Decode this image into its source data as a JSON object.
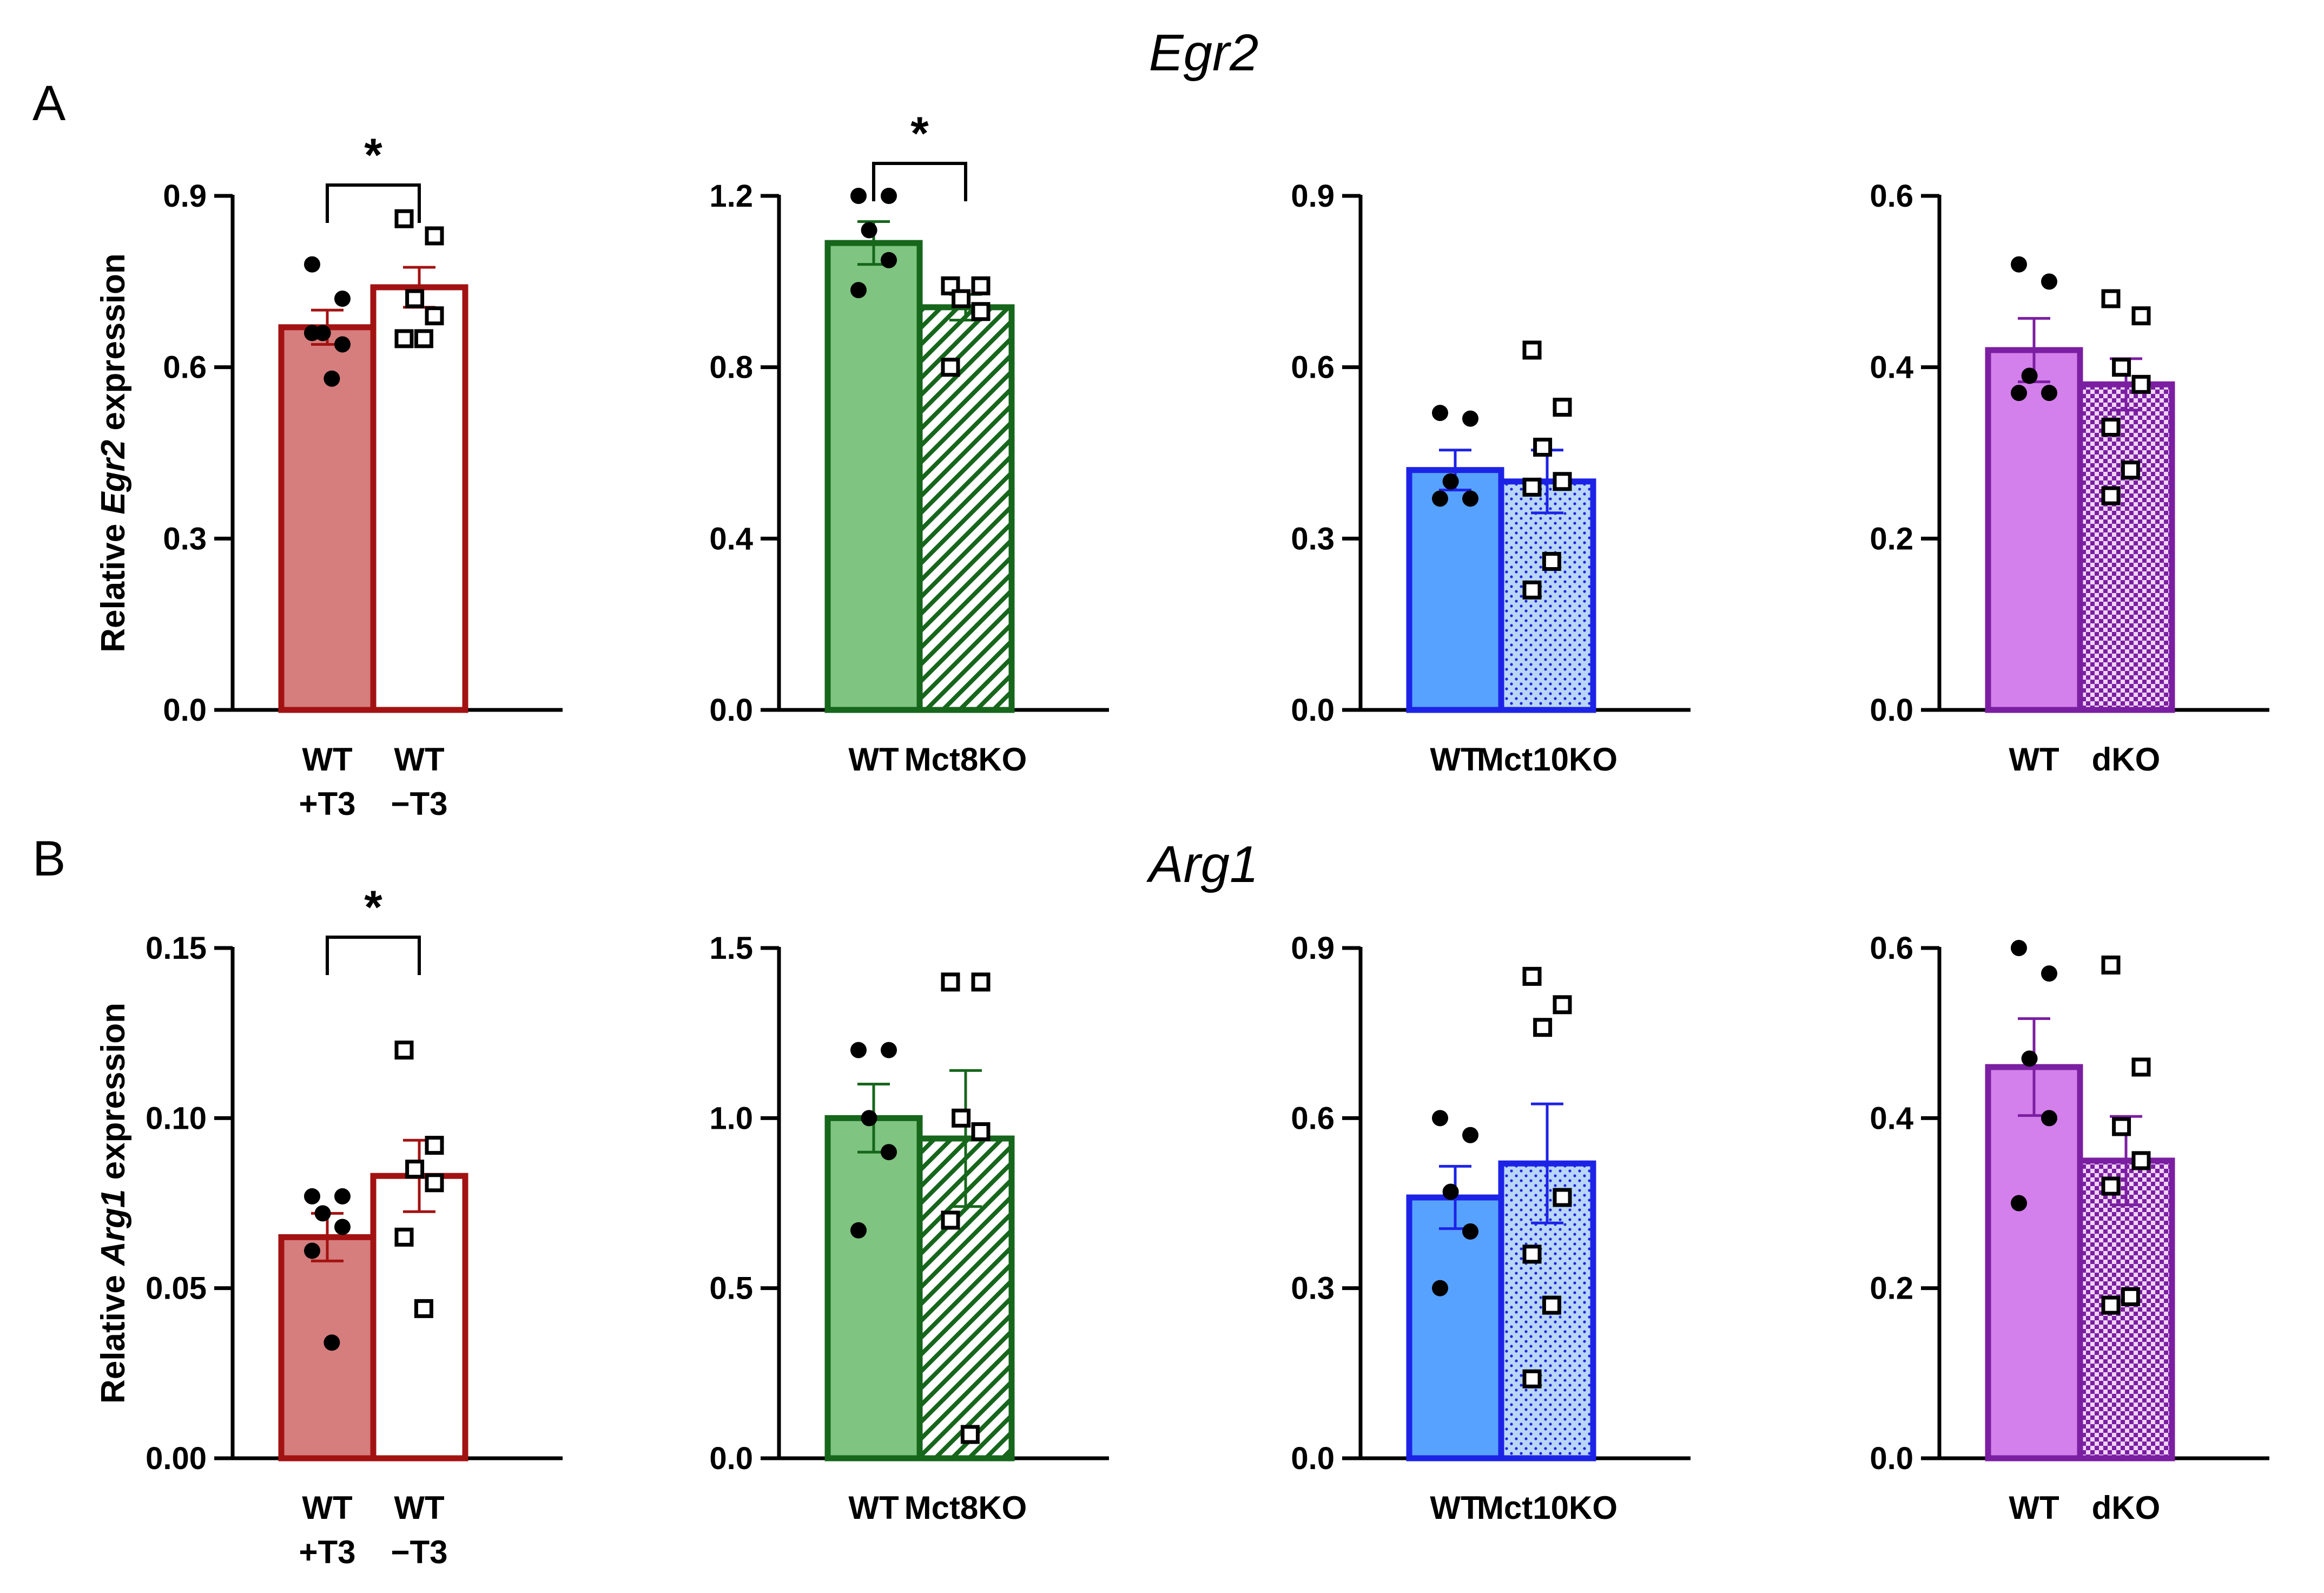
{
  "figure": {
    "panel_labels": [
      "A",
      "B"
    ],
    "genes": [
      "Egr2",
      "Arg1"
    ],
    "significance_mark": "*"
  },
  "colors": {
    "red_edge": "#a31212",
    "red_fill": "#d67d7d",
    "green_edge": "#16661c",
    "green_fill": "#7fc481",
    "blue_edge": "#1d23e6",
    "blue_fill": "#57a2ff",
    "blue_pattern_bg": "#b9d6f7",
    "purple_edge": "#7b1fa2",
    "purple_fill": "#d480ec",
    "purple_pattern_bg": "#f0d4f7"
  },
  "chart_data": [
    {
      "type": "bar",
      "id": "A1",
      "gene": "Egr2",
      "row": 0,
      "col": 0,
      "color": "red",
      "ylabel_prefix": "Relative ",
      "ylabel_gene": "Egr2",
      "ylabel_suffix": " expression",
      "ylim": [
        0,
        0.9
      ],
      "yticks": [
        "0.0",
        "0.3",
        "0.6",
        "0.9"
      ],
      "categories": [
        [
          "WT",
          "+T3"
        ],
        [
          "WT",
          "−T3"
        ]
      ],
      "fill_style": [
        "solid",
        "open"
      ],
      "values": [
        0.67,
        0.74
      ],
      "sem": [
        0.03,
        0.035
      ],
      "points": [
        [
          0.78,
          0.72,
          0.66,
          0.64,
          0.66,
          0.58
        ],
        [
          0.86,
          0.83,
          0.72,
          0.69,
          0.65,
          0.65
        ]
      ],
      "significance": {
        "pair": [
          0,
          1
        ],
        "label": "*"
      }
    },
    {
      "type": "bar",
      "id": "A2",
      "gene": "Egr2",
      "row": 0,
      "col": 1,
      "color": "green",
      "ylim": [
        0,
        1.2
      ],
      "yticks": [
        "0.0",
        "0.4",
        "0.8",
        "1.2"
      ],
      "categories": [
        [
          "WT"
        ],
        [
          "Mct8KO"
        ]
      ],
      "fill_style": [
        "solid",
        "hatch"
      ],
      "values": [
        1.09,
        0.94
      ],
      "sem": [
        0.05,
        0.03
      ],
      "points": [
        [
          1.2,
          1.2,
          1.12,
          1.05,
          0.98
        ],
        [
          0.99,
          0.99,
          0.96,
          0.93,
          0.8
        ]
      ],
      "significance": {
        "pair": [
          0,
          1
        ],
        "label": "*"
      }
    },
    {
      "type": "bar",
      "id": "A3",
      "gene": "Egr2",
      "row": 0,
      "col": 2,
      "color": "blue",
      "ylim": [
        0,
        0.9
      ],
      "yticks": [
        "0.0",
        "0.3",
        "0.6",
        "0.9"
      ],
      "categories": [
        [
          "WT"
        ],
        [
          "Mct10KO"
        ]
      ],
      "fill_style": [
        "solid",
        "dots"
      ],
      "values": [
        0.42,
        0.4
      ],
      "sem": [
        0.035,
        0.055
      ],
      "points": [
        [
          0.52,
          0.51,
          0.4,
          0.37,
          0.37
        ],
        [
          0.63,
          0.53,
          0.46,
          0.4,
          0.39,
          0.26,
          0.21
        ]
      ],
      "significance": null
    },
    {
      "type": "bar",
      "id": "A4",
      "gene": "Egr2",
      "row": 0,
      "col": 3,
      "color": "purple",
      "ylim": [
        0,
        0.6
      ],
      "yticks": [
        "0.0",
        "0.2",
        "0.4",
        "0.6"
      ],
      "categories": [
        [
          "WT"
        ],
        [
          "dKO"
        ]
      ],
      "fill_style": [
        "solid",
        "checker"
      ],
      "values": [
        0.42,
        0.38
      ],
      "sem": [
        0.037,
        0.03
      ],
      "points": [
        [
          0.52,
          0.5,
          0.39,
          0.37,
          0.37
        ],
        [
          0.48,
          0.46,
          0.4,
          0.38,
          0.33,
          0.28,
          0.25
        ]
      ],
      "significance": null
    },
    {
      "type": "bar",
      "id": "B1",
      "gene": "Arg1",
      "row": 1,
      "col": 0,
      "color": "red",
      "ylabel_prefix": "Relative ",
      "ylabel_gene": "Arg1",
      "ylabel_suffix": " expression",
      "ylim": [
        0,
        0.15
      ],
      "yticks": [
        "0.00",
        "0.05",
        "0.10",
        "0.15"
      ],
      "categories": [
        [
          "WT",
          "+T3"
        ],
        [
          "WT",
          "−T3"
        ]
      ],
      "fill_style": [
        "solid",
        "open"
      ],
      "values": [
        0.065,
        0.083
      ],
      "sem": [
        0.007,
        0.0105
      ],
      "points": [
        [
          0.077,
          0.077,
          0.072,
          0.068,
          0.061,
          0.034
        ],
        [
          0.12,
          0.092,
          0.085,
          0.081,
          0.065,
          0.044
        ]
      ],
      "significance": {
        "pair": [
          0,
          1
        ],
        "label": "*"
      }
    },
    {
      "type": "bar",
      "id": "B2",
      "gene": "Arg1",
      "row": 1,
      "col": 1,
      "color": "green",
      "ylim": [
        0,
        1.5
      ],
      "yticks": [
        "0.0",
        "0.5",
        "1.0",
        "1.5"
      ],
      "categories": [
        [
          "WT"
        ],
        [
          "Mct8KO"
        ]
      ],
      "fill_style": [
        "solid",
        "hatch"
      ],
      "values": [
        1.0,
        0.94
      ],
      "sem": [
        0.1,
        0.2
      ],
      "points": [
        [
          1.2,
          1.2,
          1.0,
          0.9,
          0.67
        ],
        [
          1.4,
          1.4,
          1.0,
          0.96,
          0.7,
          0.07
        ]
      ],
      "significance": null
    },
    {
      "type": "bar",
      "id": "B3",
      "gene": "Arg1",
      "row": 1,
      "col": 2,
      "color": "blue",
      "ylim": [
        0,
        0.9
      ],
      "yticks": [
        "0.0",
        "0.3",
        "0.6",
        "0.9"
      ],
      "categories": [
        [
          "WT"
        ],
        [
          "Mct10KO"
        ]
      ],
      "fill_style": [
        "solid",
        "dots"
      ],
      "values": [
        0.46,
        0.52
      ],
      "sem": [
        0.055,
        0.105
      ],
      "points": [
        [
          0.6,
          0.57,
          0.47,
          0.4,
          0.3
        ],
        [
          0.85,
          0.8,
          0.76,
          0.46,
          0.36,
          0.27,
          0.14
        ]
      ],
      "significance": null
    },
    {
      "type": "bar",
      "id": "B4",
      "gene": "Arg1",
      "row": 1,
      "col": 3,
      "color": "purple",
      "ylim": [
        0,
        0.6
      ],
      "yticks": [
        "0.0",
        "0.2",
        "0.4",
        "0.6"
      ],
      "categories": [
        [
          "WT"
        ],
        [
          "dKO"
        ]
      ],
      "fill_style": [
        "solid",
        "checker"
      ],
      "values": [
        0.46,
        0.35
      ],
      "sem": [
        0.057,
        0.052
      ],
      "points": [
        [
          0.6,
          0.57,
          0.47,
          0.4,
          0.3
        ],
        [
          0.58,
          0.46,
          0.39,
          0.35,
          0.32,
          0.19,
          0.18
        ]
      ],
      "significance": null
    }
  ]
}
